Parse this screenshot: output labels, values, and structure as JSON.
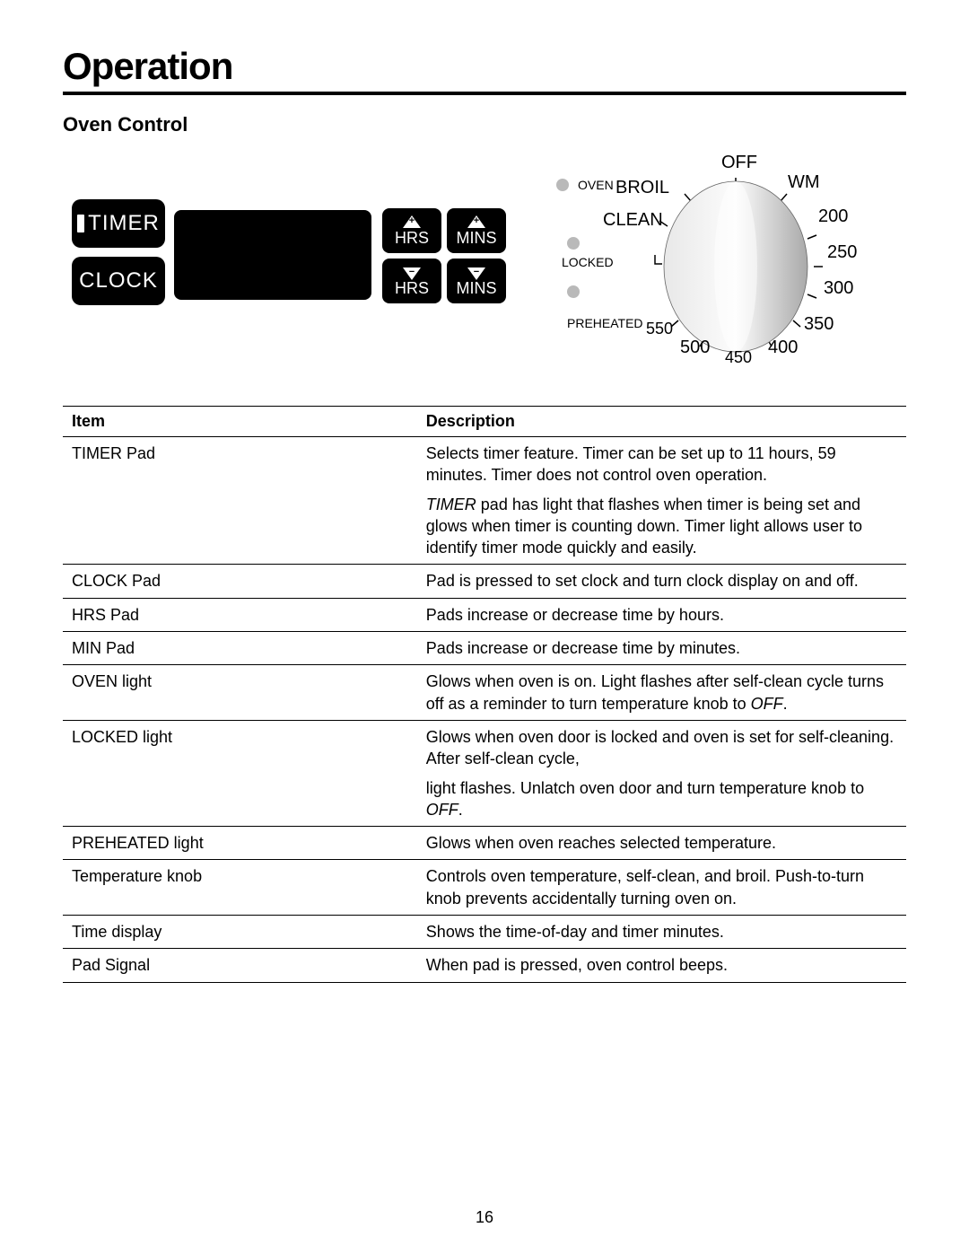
{
  "page": {
    "section_title": "Operation",
    "subsection_title": "Oven Control",
    "page_number": "16"
  },
  "controls": {
    "timer_label": "TIMER",
    "clock_label": "CLOCK",
    "hrs_label": "HRS",
    "mins_label": "MINS"
  },
  "knob": {
    "top_label": "OFF",
    "oven_label": "OVEN",
    "broil_label": "BROIL",
    "clean_label": "CLEAN",
    "locked_label": "LOCKED",
    "preheated_label": "PREHEATED",
    "wm_label": "WM",
    "temps": {
      "t200": "200",
      "t250": "250",
      "t300": "300",
      "t350": "350",
      "t400": "400",
      "t450": "450",
      "t500": "500",
      "t550": "550"
    },
    "colors": {
      "indicator": "#b9b9b9",
      "knob_light": "#e8e8e8",
      "knob_dark": "#b0b0b0",
      "tick": "#000000"
    }
  },
  "table": {
    "headers": {
      "item": "Item",
      "description": "Description"
    },
    "rows": [
      {
        "item": "TIMER Pad",
        "paras": [
          {
            "text_html": "Selects timer feature. Timer can be set up to 11 hours, 59 minutes. Timer does not control oven operation."
          },
          {
            "text_html": "<span class=\"italic\">TIMER</span> pad has light that flashes when timer is being set and glows when timer is counting down. Timer light allows  user to identify timer mode quickly and easily."
          }
        ]
      },
      {
        "item": "CLOCK Pad",
        "paras": [
          {
            "text_html": "Pad is pressed to set clock and turn clock display on and off."
          }
        ]
      },
      {
        "item": "HRS Pad",
        "paras": [
          {
            "text_html": "Pads increase or decrease time by hours."
          }
        ]
      },
      {
        "item": "MIN Pad",
        "paras": [
          {
            "text_html": "Pads increase or decrease time by minutes."
          }
        ]
      },
      {
        "item": "OVEN light",
        "paras": [
          {
            "text_html": "Glows when oven is on. Light flashes after self-clean cycle turns off as a reminder to turn temperature knob to <span class=\"italic\">OFF</span>."
          }
        ]
      },
      {
        "item": "LOCKED light",
        "paras": [
          {
            "text_html": "Glows when oven door is locked and oven is set for self-cleaning. After self-clean cycle,"
          },
          {
            "text_html": "light flashes. Unlatch oven door and turn temperature knob to <span class=\"italic\">OFF</span>."
          }
        ]
      },
      {
        "item": "PREHEATED light",
        "paras": [
          {
            "text_html": "Glows when oven reaches selected temperature."
          }
        ]
      },
      {
        "item": "Temperature knob",
        "paras": [
          {
            "text_html": "Controls oven temperature, self-clean, and broil. Push-to-turn knob prevents accidentally turning oven on."
          }
        ]
      },
      {
        "item": "Time display",
        "paras": [
          {
            "text_html": "Shows the time-of-day and timer minutes."
          }
        ]
      },
      {
        "item": "Pad Signal",
        "paras": [
          {
            "text_html": "When pad is pressed, oven control beeps."
          }
        ]
      }
    ]
  }
}
